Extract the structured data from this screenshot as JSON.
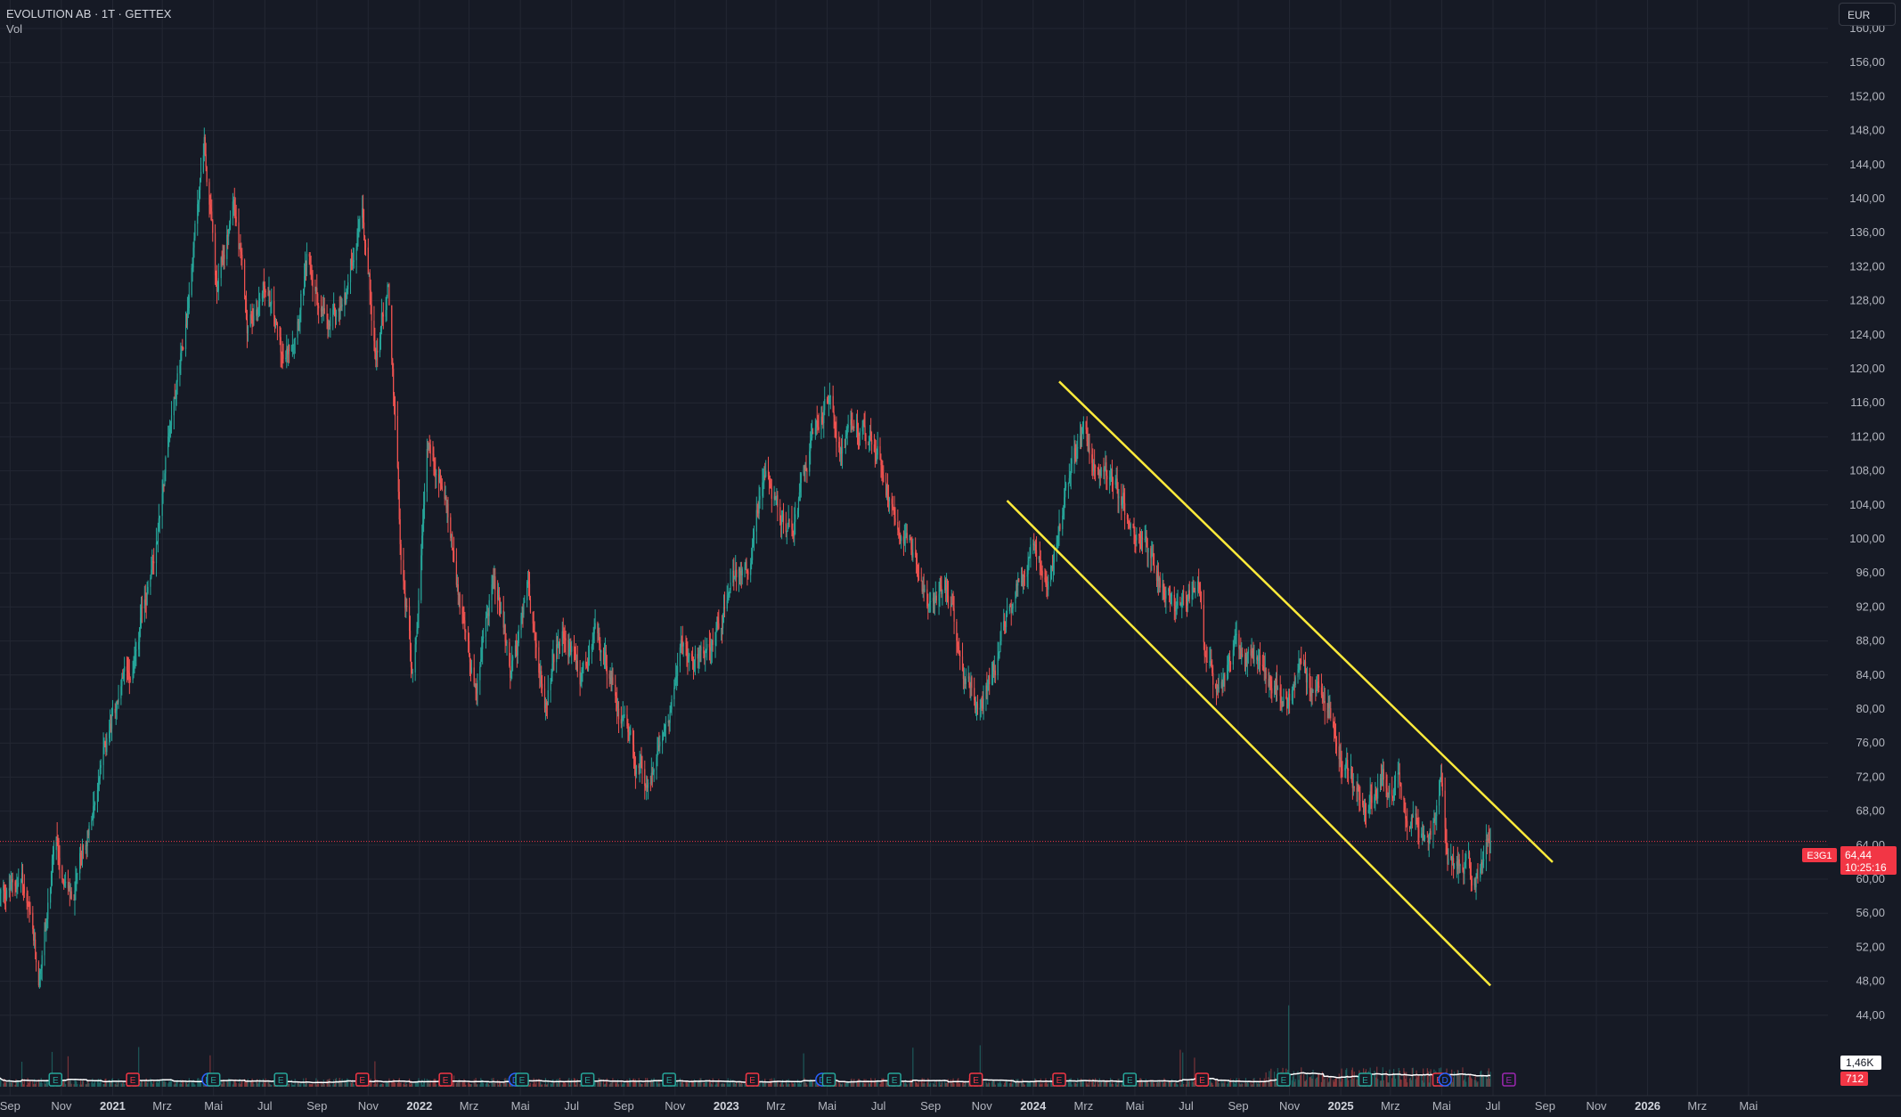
{
  "header": {
    "title": "EVOLUTION AB · 1T · GETTEX",
    "volume_label": "Vol",
    "currency": "EUR"
  },
  "colors": {
    "background": "#161a25",
    "grid": "#232733",
    "up": "#26a69a",
    "down": "#ef5350",
    "channel": "#ffeb3b",
    "volume_ma": "#ffffff",
    "price_line": "#f23645",
    "axis_text": "#b2b5be"
  },
  "price_badge": {
    "symbol": "E3G1",
    "price": "64,44",
    "countdown": "10:25:16"
  },
  "volume_badges": {
    "ma": "1,46K",
    "volume": "712"
  },
  "chart_data": {
    "type": "candlestick",
    "symbol": "EVOLUTION AB",
    "interval": "1T",
    "exchange": "GETTEX",
    "y_axis": {
      "labels": [
        "160,00",
        "156,00",
        "152,00",
        "148,00",
        "144,00",
        "140,00",
        "136,00",
        "132,00",
        "128,00",
        "124,00",
        "120,00",
        "116,00",
        "112,00",
        "108,00",
        "104,00",
        "100,00",
        "96,00",
        "92,00",
        "88,00",
        "84,00",
        "80,00",
        "76,00",
        "72,00",
        "68,00",
        "64,00",
        "60,00",
        "56,00",
        "52,00",
        "48,00",
        "44,00"
      ],
      "min": 42,
      "max": 162
    },
    "x_axis": {
      "start": "2020-08-20",
      "end": "2026-06-20",
      "labels": [
        {
          "text": "Sep",
          "date": "2020-09-01",
          "bold": false
        },
        {
          "text": "Nov",
          "date": "2020-11-01",
          "bold": false
        },
        {
          "text": "2021",
          "date": "2021-01-01",
          "bold": true
        },
        {
          "text": "Mrz",
          "date": "2021-03-01",
          "bold": false
        },
        {
          "text": "Mai",
          "date": "2021-05-01",
          "bold": false
        },
        {
          "text": "Jul",
          "date": "2021-07-01",
          "bold": false
        },
        {
          "text": "Sep",
          "date": "2021-09-01",
          "bold": false
        },
        {
          "text": "Nov",
          "date": "2021-11-01",
          "bold": false
        },
        {
          "text": "2022",
          "date": "2022-01-01",
          "bold": true
        },
        {
          "text": "Mrz",
          "date": "2022-03-01",
          "bold": false
        },
        {
          "text": "Mai",
          "date": "2022-05-01",
          "bold": false
        },
        {
          "text": "Jul",
          "date": "2022-07-01",
          "bold": false
        },
        {
          "text": "Sep",
          "date": "2022-09-01",
          "bold": false
        },
        {
          "text": "Nov",
          "date": "2022-11-01",
          "bold": false
        },
        {
          "text": "2023",
          "date": "2023-01-01",
          "bold": true
        },
        {
          "text": "Mrz",
          "date": "2023-03-01",
          "bold": false
        },
        {
          "text": "Mai",
          "date": "2023-05-01",
          "bold": false
        },
        {
          "text": "Jul",
          "date": "2023-07-01",
          "bold": false
        },
        {
          "text": "Sep",
          "date": "2023-09-01",
          "bold": false
        },
        {
          "text": "Nov",
          "date": "2023-11-01",
          "bold": false
        },
        {
          "text": "2024",
          "date": "2024-01-01",
          "bold": true
        },
        {
          "text": "Mrz",
          "date": "2024-03-01",
          "bold": false
        },
        {
          "text": "Mai",
          "date": "2024-05-01",
          "bold": false
        },
        {
          "text": "Jul",
          "date": "2024-07-01",
          "bold": false
        },
        {
          "text": "Sep",
          "date": "2024-09-01",
          "bold": false
        },
        {
          "text": "Nov",
          "date": "2024-11-01",
          "bold": false
        },
        {
          "text": "2025",
          "date": "2025-01-01",
          "bold": true
        },
        {
          "text": "Mrz",
          "date": "2025-03-01",
          "bold": false
        },
        {
          "text": "Mai",
          "date": "2025-05-01",
          "bold": false
        },
        {
          "text": "Jul",
          "date": "2025-07-01",
          "bold": false
        },
        {
          "text": "Sep",
          "date": "2025-09-01",
          "bold": false
        },
        {
          "text": "Nov",
          "date": "2025-11-01",
          "bold": false
        },
        {
          "text": "2026",
          "date": "2026-01-01",
          "bold": true
        },
        {
          "text": "Mrz",
          "date": "2026-03-01",
          "bold": false
        },
        {
          "text": "Mai",
          "date": "2026-05-01",
          "bold": false
        }
      ]
    },
    "last_price": 64.44,
    "price_path": [
      [
        "2020-08-20",
        58
      ],
      [
        "2020-09-15",
        60
      ],
      [
        "2020-10-05",
        48
      ],
      [
        "2020-10-25",
        64
      ],
      [
        "2020-11-15",
        57
      ],
      [
        "2020-12-10",
        70
      ],
      [
        "2021-01-01",
        79
      ],
      [
        "2021-01-25",
        86
      ],
      [
        "2021-02-20",
        98
      ],
      [
        "2021-03-10",
        114
      ],
      [
        "2021-04-01",
        128
      ],
      [
        "2021-04-20",
        147
      ],
      [
        "2021-05-05",
        128
      ],
      [
        "2021-05-25",
        140
      ],
      [
        "2021-06-10",
        125
      ],
      [
        "2021-07-01",
        130
      ],
      [
        "2021-07-25",
        120
      ],
      [
        "2021-08-20",
        132
      ],
      [
        "2021-09-15",
        124
      ],
      [
        "2021-10-05",
        128
      ],
      [
        "2021-10-25",
        140
      ],
      [
        "2021-11-10",
        122
      ],
      [
        "2021-11-25",
        130
      ],
      [
        "2021-12-10",
        98
      ],
      [
        "2021-12-25",
        83
      ],
      [
        "2022-01-10",
        112
      ],
      [
        "2022-01-30",
        106
      ],
      [
        "2022-02-20",
        92
      ],
      [
        "2022-03-10",
        82
      ],
      [
        "2022-03-30",
        96
      ],
      [
        "2022-04-20",
        84
      ],
      [
        "2022-05-10",
        94
      ],
      [
        "2022-05-30",
        80
      ],
      [
        "2022-06-20",
        90
      ],
      [
        "2022-07-10",
        83
      ],
      [
        "2022-07-30",
        88
      ],
      [
        "2022-08-20",
        82
      ],
      [
        "2022-09-10",
        76
      ],
      [
        "2022-09-30",
        70
      ],
      [
        "2022-10-20",
        78
      ],
      [
        "2022-11-10",
        87
      ],
      [
        "2022-12-01",
        85
      ],
      [
        "2022-12-20",
        90
      ],
      [
        "2023-01-10",
        95
      ],
      [
        "2023-01-30",
        97
      ],
      [
        "2023-02-15",
        109
      ],
      [
        "2023-03-01",
        104
      ],
      [
        "2023-03-20",
        100
      ],
      [
        "2023-04-10",
        110
      ],
      [
        "2023-04-30",
        116
      ],
      [
        "2023-05-20",
        110
      ],
      [
        "2023-06-10",
        113
      ],
      [
        "2023-07-01",
        110
      ],
      [
        "2023-07-20",
        104
      ],
      [
        "2023-08-10",
        100
      ],
      [
        "2023-08-30",
        92
      ],
      [
        "2023-09-20",
        94
      ],
      [
        "2023-10-10",
        86
      ],
      [
        "2023-10-30",
        80
      ],
      [
        "2023-11-20",
        86
      ],
      [
        "2023-12-10",
        94
      ],
      [
        "2024-01-01",
        100
      ],
      [
        "2024-01-20",
        96
      ],
      [
        "2024-02-10",
        106
      ],
      [
        "2024-03-01",
        113
      ],
      [
        "2024-03-20",
        108
      ],
      [
        "2024-04-10",
        106
      ],
      [
        "2024-04-30",
        101
      ],
      [
        "2024-05-20",
        97
      ],
      [
        "2024-06-10",
        94
      ],
      [
        "2024-06-30",
        92
      ],
      [
        "2024-07-15",
        96
      ],
      [
        "2024-07-25",
        85
      ],
      [
        "2024-08-10",
        82
      ],
      [
        "2024-08-30",
        87
      ],
      [
        "2024-09-20",
        85
      ],
      [
        "2024-10-10",
        83
      ],
      [
        "2024-10-30",
        81
      ],
      [
        "2024-11-15",
        86
      ],
      [
        "2024-12-01",
        82
      ],
      [
        "2024-12-20",
        80
      ],
      [
        "2025-01-10",
        72
      ],
      [
        "2025-01-30",
        68
      ],
      [
        "2025-02-20",
        72
      ],
      [
        "2025-03-10",
        71
      ],
      [
        "2025-03-30",
        66
      ],
      [
        "2025-04-15",
        64
      ],
      [
        "2025-04-30",
        72
      ],
      [
        "2025-05-08",
        60
      ],
      [
        "2025-05-25",
        62
      ],
      [
        "2025-06-10",
        60
      ],
      [
        "2025-06-25",
        66
      ],
      [
        "2025-06-28",
        64.44
      ]
    ],
    "channel_lines": [
      {
        "name": "upper",
        "from": [
          "2024-02-01",
          118.5
        ],
        "to": [
          "2025-09-10",
          62
        ]
      },
      {
        "name": "lower",
        "from": [
          "2023-12-01",
          104.5
        ],
        "to": [
          "2025-06-28",
          47.5
        ]
      }
    ],
    "events": [
      {
        "type": "E",
        "color": "#26a69a",
        "date": "2020-10-25"
      },
      {
        "type": "E",
        "color": "#f23645",
        "date": "2021-01-25"
      },
      {
        "type": "D",
        "color": "#2962ff",
        "date": "2021-04-25"
      },
      {
        "type": "E",
        "color": "#26a69a",
        "date": "2021-05-01"
      },
      {
        "type": "E",
        "color": "#26a69a",
        "date": "2021-07-20"
      },
      {
        "type": "E",
        "color": "#f23645",
        "date": "2021-10-25"
      },
      {
        "type": "E",
        "color": "#f23645",
        "date": "2022-02-01"
      },
      {
        "type": "D",
        "color": "#2962ff",
        "date": "2022-04-25"
      },
      {
        "type": "E",
        "color": "#26a69a",
        "date": "2022-05-03"
      },
      {
        "type": "E",
        "color": "#26a69a",
        "date": "2022-07-20"
      },
      {
        "type": "E",
        "color": "#26a69a",
        "date": "2022-10-25"
      },
      {
        "type": "E",
        "color": "#f23645",
        "date": "2023-02-01"
      },
      {
        "type": "D",
        "color": "#2962ff",
        "date": "2023-04-25"
      },
      {
        "type": "E",
        "color": "#26a69a",
        "date": "2023-05-03"
      },
      {
        "type": "E",
        "color": "#26a69a",
        "date": "2023-07-20"
      },
      {
        "type": "E",
        "color": "#f23645",
        "date": "2023-10-25"
      },
      {
        "type": "E",
        "color": "#f23645",
        "date": "2024-02-01"
      },
      {
        "type": "E",
        "color": "#26a69a",
        "date": "2024-04-25"
      },
      {
        "type": "E",
        "color": "#f23645",
        "date": "2024-07-20"
      },
      {
        "type": "E",
        "color": "#26a69a",
        "date": "2024-10-25"
      },
      {
        "type": "E",
        "color": "#26a69a",
        "date": "2025-01-30"
      },
      {
        "type": "E",
        "color": "#f23645",
        "date": "2025-04-28"
      },
      {
        "type": "D",
        "color": "#2962ff",
        "date": "2025-05-05"
      },
      {
        "type": "E",
        "color": "#9c27b0",
        "date": "2025-07-20"
      }
    ]
  }
}
